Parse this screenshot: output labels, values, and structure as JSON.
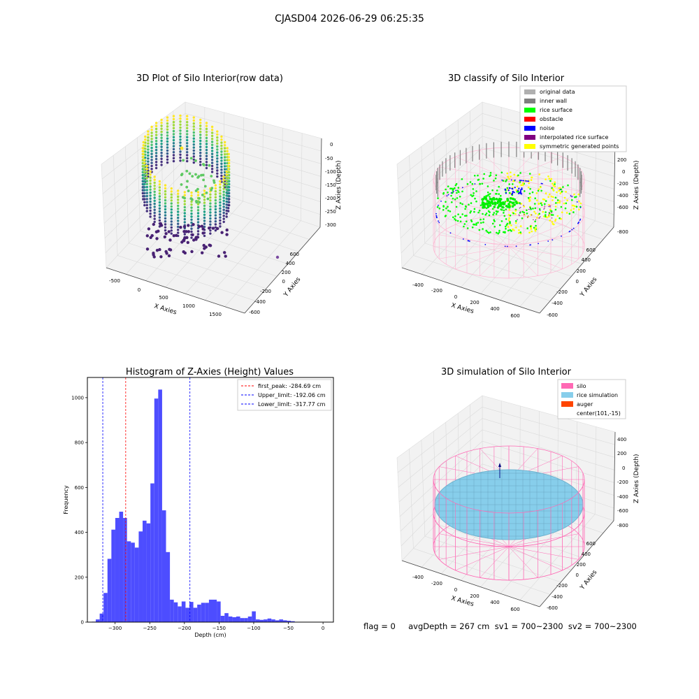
{
  "suptitle": "CJASD04 2026-06-29 06:25:35",
  "footer": "flag = 0     avgDepth = 267 cm  sv1 = 700~2300  sv2 = 700~2300",
  "colors": {
    "hist": "#0000ff",
    "peak": "#ff0000",
    "limit": "#0000ff",
    "silo": "#ff69b4",
    "rice": "#87ceeb",
    "auger": "#ff4500"
  },
  "chart_data": [
    {
      "type": "scatter",
      "title": "3D Plot of Silo Interior(row data)",
      "xlabel": "X Axies",
      "ylabel": "Y Axies",
      "zlabel": "Z Axies (Depth)",
      "x_ticks": [
        "-500",
        "0",
        "500",
        "1000",
        "1500"
      ],
      "y_ticks": [
        "-600",
        "-400",
        "-200",
        "0",
        "200",
        "400",
        "600"
      ],
      "z_ticks": [
        "0",
        "-50",
        "-100",
        "-150",
        "-200",
        "-250",
        "-300"
      ],
      "colormap": "viridis"
    },
    {
      "type": "scatter",
      "title": "3D classify of Silo Interior",
      "xlabel": "X Axies",
      "ylabel": "Y Axies",
      "zlabel": "Z Axies (Depth)",
      "x_ticks": [
        "-400",
        "-200",
        "0",
        "200",
        "400",
        "600"
      ],
      "y_ticks": [
        "-600",
        "-400",
        "-200",
        "0",
        "200",
        "400",
        "600"
      ],
      "z_ticks": [
        "200",
        "0",
        "-200",
        "-400",
        "-600",
        "-800"
      ],
      "legend": [
        {
          "label": "original data",
          "color": "#b0b0b0"
        },
        {
          "label": "inner wall",
          "color": "#808080"
        },
        {
          "label": "rice surface",
          "color": "#00ff00"
        },
        {
          "label": "obstacle",
          "color": "#ff0000"
        },
        {
          "label": "noise",
          "color": "#0000ff"
        },
        {
          "label": "interpolated rice surface",
          "color": "#800080"
        },
        {
          "label": "symmetric generated points",
          "color": "#ffff00"
        }
      ]
    },
    {
      "type": "bar",
      "title": "Histogram of Z-Axies (Height) Values",
      "xlabel": "Depth (cm)",
      "ylabel": "Frequency",
      "xlim": [
        -340,
        15
      ],
      "ylim": [
        0,
        1090
      ],
      "x_ticks": [
        -300,
        -250,
        -200,
        -150,
        -100,
        -50,
        0
      ],
      "y_ticks": [
        0,
        200,
        400,
        600,
        800,
        1000
      ],
      "bin_width": 5.63,
      "bin_start": -333.5,
      "values": [
        2,
        12,
        38,
        130,
        282,
        412,
        464,
        492,
        464,
        360,
        354,
        332,
        404,
        452,
        440,
        618,
        996,
        1036,
        498,
        312,
        100,
        88,
        70,
        92,
        64,
        90,
        64,
        78,
        86,
        86,
        100,
        100,
        92,
        28,
        40,
        25,
        22,
        25,
        18,
        18,
        25,
        48,
        12,
        10,
        12,
        16,
        12,
        8,
        12,
        8,
        6,
        4
      ],
      "annotations": [
        {
          "label": "first_peak: -284.69 cm",
          "x": -284.69,
          "style": "red-dashed"
        },
        {
          "label": "Upper_limit: -192.06 cm",
          "x": -192.06,
          "style": "blue-dashed"
        },
        {
          "label": "Lower_limit: -317.77 cm",
          "x": -317.77,
          "style": "blue-dashed"
        }
      ]
    },
    {
      "type": "scatter",
      "title": "3D simulation of Silo Interior",
      "xlabel": "X Axies",
      "ylabel": "Y Axies",
      "zlabel": "Z Axies (Depth)",
      "x_ticks": [
        "-400",
        "-200",
        "0",
        "200",
        "400",
        "600"
      ],
      "y_ticks": [
        "-600",
        "-400",
        "-200",
        "0",
        "200",
        "400",
        "600"
      ],
      "z_ticks": [
        "400",
        "200",
        "0",
        "-200",
        "-400",
        "-600",
        "-800"
      ],
      "legend": [
        {
          "label": "silo",
          "color": "#ff69b4"
        },
        {
          "label": "rice simulation",
          "color": "#87ceeb"
        },
        {
          "label": "auger",
          "color": "#ff4500"
        },
        {
          "label": "center(101,-15)",
          "color": ""
        }
      ]
    }
  ]
}
